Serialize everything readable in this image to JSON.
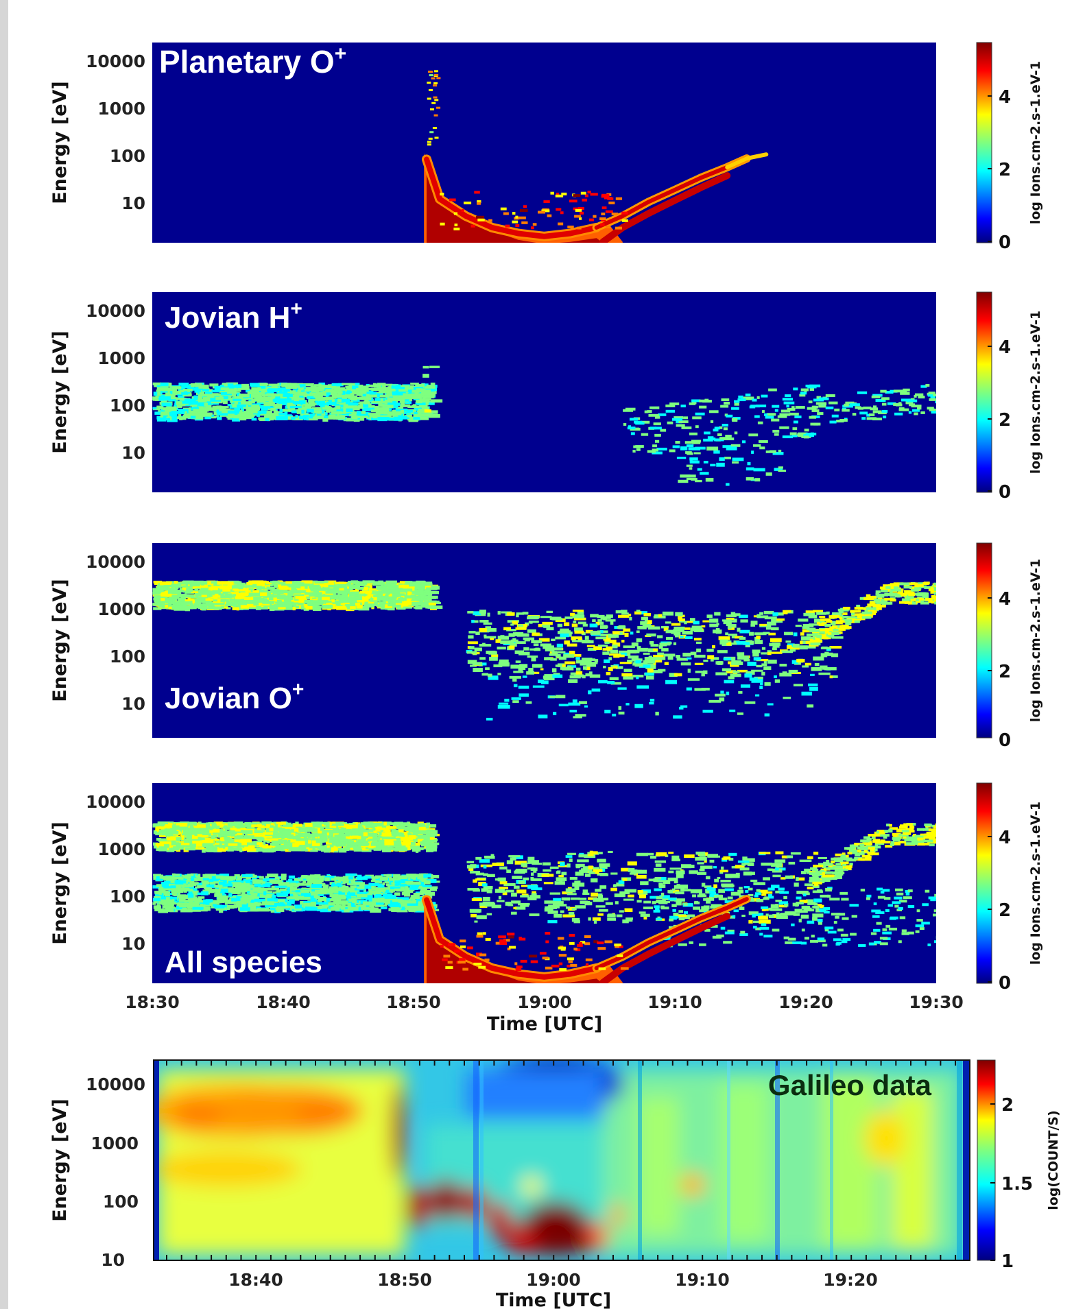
{
  "colors": {
    "background": "#00008f",
    "galileo_background": "#33c7e6",
    "colormap": [
      "#00007f",
      "#0000ff",
      "#007fff",
      "#00ffff",
      "#7fff7f",
      "#ffff00",
      "#ff7f00",
      "#ff0000",
      "#7f0000"
    ]
  },
  "chart_data": [
    {
      "type": "heatmap",
      "panel_label": "Planetary O",
      "panel_label_sup": "+",
      "ylabel": "Energy [eV]",
      "yticks": [
        "10000",
        "1000",
        "100",
        "10"
      ],
      "colorbar_label": "log Ions.cm-2.s-1.eV-1",
      "colorbar_ticks": [
        "4",
        "2",
        "0"
      ],
      "colorbar_range": [
        0,
        5.5
      ],
      "features": [
        {
          "type": "curve",
          "x_time": [
            "18:51",
            "18:52",
            "18:54",
            "18:56",
            "18:58",
            "19:00",
            "19:02",
            "19:04",
            "19:06",
            "19:08",
            "19:10",
            "19:12",
            "19:14",
            "19:15"
          ],
          "y_ev": [
            100,
            15,
            7,
            4,
            3,
            2.5,
            3,
            4,
            7,
            14,
            25,
            45,
            75,
            110
          ],
          "level": 5
        }
      ]
    },
    {
      "type": "heatmap",
      "panel_label": "Jovian H",
      "panel_label_sup": "+",
      "ylabel": "Energy [eV]",
      "yticks": [
        "10000",
        "1000",
        "100",
        "10"
      ],
      "colorbar_label": "log Ions.cm-2.s-1.eV-1",
      "colorbar_ticks": [
        "4",
        "2",
        "0"
      ],
      "colorbar_range": [
        0,
        5.5
      ],
      "features": [
        {
          "type": "band",
          "x_time": [
            "18:30",
            "18:51"
          ],
          "y_center_ev": 170,
          "level": 2.6
        },
        {
          "type": "scatter_band",
          "x_time": [
            "19:06",
            "19:30"
          ],
          "y_start_ev": 40,
          "y_end_ev": 200,
          "level": 2.3
        }
      ]
    },
    {
      "type": "heatmap",
      "panel_label": "Jovian O",
      "panel_label_sup": "+",
      "ylabel": "Energy [eV]",
      "yticks": [
        "10000",
        "1000",
        "100",
        "10"
      ],
      "colorbar_label": "log Ions.cm-2.s-1.eV-1",
      "colorbar_ticks": [
        "4",
        "2",
        "0"
      ],
      "colorbar_range": [
        0,
        5.5
      ],
      "features": [
        {
          "type": "band",
          "x_time": [
            "18:30",
            "18:51"
          ],
          "y_center_ev": 2500,
          "level": 3.2
        },
        {
          "type": "scatter_band",
          "x_time": [
            "18:55",
            "19:18"
          ],
          "y_center_ev": 300,
          "level": 2.6
        },
        {
          "type": "band",
          "x_time": [
            "19:20",
            "19:30"
          ],
          "y_center_ev": 2500,
          "level": 3.2
        }
      ]
    },
    {
      "type": "heatmap",
      "panel_label": "All species",
      "panel_label_sup": "",
      "ylabel": "Energy [eV]",
      "yticks": [
        "10000",
        "1000",
        "100",
        "10"
      ],
      "colorbar_label": "log Ions.cm-2.s-1.eV-1",
      "colorbar_ticks": [
        "4",
        "2",
        "0"
      ],
      "colorbar_range": [
        0,
        5.5
      ],
      "xticks": [
        "18:30",
        "18:40",
        "18:50",
        "19:00",
        "19:10",
        "19:20",
        "19:30"
      ],
      "xlabel": "Time [UTC]"
    },
    {
      "type": "heatmap",
      "panel_label": "Galileo data",
      "panel_label_sup": "",
      "ylabel": "Energy [eV]",
      "yticks": [
        "10000",
        "1000",
        "100",
        "10"
      ],
      "colorbar_label": "log(COUNT/S)",
      "colorbar_ticks": [
        "2",
        "1.5",
        "1"
      ],
      "colorbar_range": [
        1,
        2.25
      ],
      "xticks": [
        "18:40",
        "18:50",
        "19:00",
        "19:10",
        "19:20"
      ],
      "xlabel": "Time [UTC]"
    }
  ]
}
